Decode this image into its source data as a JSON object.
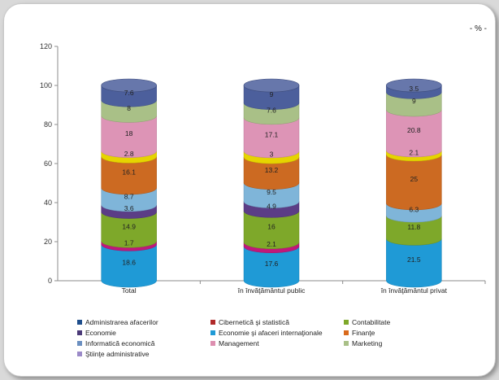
{
  "chart_data": {
    "type": "bar",
    "stacked": true,
    "unit_label": "- % -",
    "ylim": [
      0,
      120
    ],
    "yticks": [
      0,
      20,
      40,
      60,
      80,
      100,
      120
    ],
    "categories": [
      "Total",
      "în învăţământul public",
      "în învăţământul privat"
    ],
    "series": [
      {
        "name": "Administrarea afacerilor",
        "color": "#1f9ad6",
        "values": [
          18.6,
          17.6,
          21.5
        ]
      },
      {
        "name": "Cibernetică şi statistică",
        "color": "#c0187a",
        "values": [
          1.7,
          2.1,
          0
        ]
      },
      {
        "name": "Contabilitate",
        "color": "#7ea82a",
        "values": [
          14.9,
          16,
          11.8
        ]
      },
      {
        "name": "Economie",
        "color": "#5b3d86",
        "values": [
          3.6,
          4.9,
          0
        ]
      },
      {
        "name": "Economie şi afaceri internaţionale",
        "color": "#7fb5d9",
        "values": [
          8.7,
          9.5,
          6.3
        ]
      },
      {
        "name": "Finanţe",
        "color": "#cc6a22",
        "values": [
          16.1,
          13.2,
          25
        ]
      },
      {
        "name": "Informatică economică",
        "color": "#e6d400",
        "values": [
          2.8,
          3,
          2.1
        ]
      },
      {
        "name": "Management",
        "color": "#dd94b6",
        "values": [
          18,
          17.1,
          20.8
        ]
      },
      {
        "name": "Marketing",
        "color": "#a9c087",
        "values": [
          8,
          7.6,
          9
        ]
      },
      {
        "name": "Ştiinţe administrative",
        "color": "#4c5f9c",
        "values": [
          7.6,
          9,
          3.5
        ]
      }
    ],
    "value_labels": [
      [
        "18.6",
        "1.7",
        "14.9",
        "3.6",
        "8.7",
        "16.1",
        "2.8",
        "18",
        "8",
        "7.6"
      ],
      [
        "17.6",
        "2.1",
        "16",
        "4.9",
        "9.5",
        "13.2",
        "3",
        "17.1",
        "7.6",
        "9"
      ],
      [
        "21.5",
        "",
        "11.8",
        "",
        "6.3",
        "25",
        "2.1",
        "20.8",
        "9",
        "3.5"
      ]
    ],
    "legend_series_colors": [
      "#1f4e8c",
      "#b02a2a",
      "#7ea82a",
      "#4b3a78",
      "#1f9ad6",
      "#d96a1c",
      "#6b8fc0",
      "#dd8fb0",
      "#a9c087",
      "#9b8ac8"
    ],
    "grid": false,
    "legend_position": "bottom"
  }
}
